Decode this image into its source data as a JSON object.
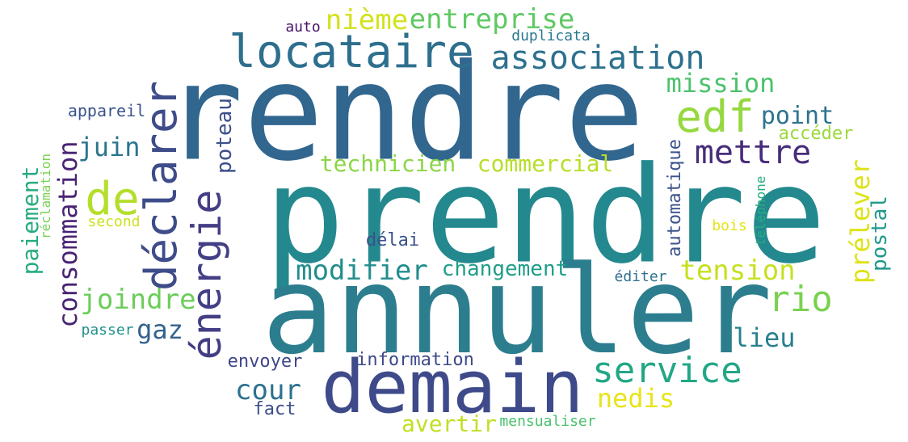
{
  "colors": {
    "background": "#ffffff",
    "palette": [
      "#440154",
      "#3b528b",
      "#2c718e",
      "#21918c",
      "#28ae80",
      "#5ec962",
      "#addc30",
      "#dde318"
    ]
  },
  "words": [
    {
      "id": "rendre",
      "text": "rendre",
      "color": "#31668e"
    },
    {
      "id": "prendre",
      "text": "prendre",
      "color": "#23898e"
    },
    {
      "id": "annuler",
      "text": "annuler",
      "color": "#2c7e8e"
    },
    {
      "id": "demain",
      "text": "demain",
      "color": "#3e4a89"
    },
    {
      "id": "locataire",
      "text": "locataire",
      "color": "#2e6f8e"
    },
    {
      "id": "declarer",
      "text": "déclarer",
      "color": "#3e4c8a"
    },
    {
      "id": "energie",
      "text": "énergie",
      "color": "#433e85"
    },
    {
      "id": "association",
      "text": "association",
      "color": "#2d708e"
    },
    {
      "id": "edf",
      "text": "edf",
      "color": "#95d840"
    },
    {
      "id": "mettre",
      "text": "mettre",
      "color": "#472c7a"
    },
    {
      "id": "de",
      "text": "de",
      "color": "#b5de2b"
    },
    {
      "id": "service",
      "text": "service",
      "color": "#22a785"
    },
    {
      "id": "entreprise",
      "text": "entreprise",
      "color": "#5ec962"
    },
    {
      "id": "niemeetc",
      "text": "nième",
      "color": "#d2e21b"
    },
    {
      "id": "mission",
      "text": "mission",
      "color": "#4cc26c"
    },
    {
      "id": "point",
      "text": "point",
      "color": "#2c738e"
    },
    {
      "id": "acceder",
      "text": "accéder",
      "color": "#9bd93c"
    },
    {
      "id": "juin",
      "text": "juin",
      "color": "#2b748e"
    },
    {
      "id": "technicien",
      "text": "technicien",
      "color": "#8bd646"
    },
    {
      "id": "commercial",
      "text": "commercial",
      "color": "#b8de29"
    },
    {
      "id": "poteau",
      "text": "poteau",
      "color": "#3c4f8a"
    },
    {
      "id": "consommation",
      "text": "consommation",
      "color": "#482374"
    },
    {
      "id": "paiement",
      "text": "paiement",
      "color": "#25ab82"
    },
    {
      "id": "reclamation",
      "text": "réclamation",
      "color": "#7ad151"
    },
    {
      "id": "second",
      "text": "second",
      "color": "#cde11d"
    },
    {
      "id": "appareil",
      "text": "appareil",
      "color": "#3a548c"
    },
    {
      "id": "auto",
      "text": "auto",
      "color": "#471164"
    },
    {
      "id": "duplicata",
      "text": "duplicata",
      "color": "#2a788e"
    },
    {
      "id": "modifier",
      "text": "modifier",
      "color": "#228d8d"
    },
    {
      "id": "changement",
      "text": "changement",
      "color": "#1f9e89"
    },
    {
      "id": "tension",
      "text": "tension",
      "color": "#c8e020"
    },
    {
      "id": "prelever",
      "text": "prélever",
      "color": "#dde318"
    },
    {
      "id": "postal",
      "text": "postal",
      "color": "#1f998a"
    },
    {
      "id": "automatique",
      "text": "automatique",
      "color": "#3b528b"
    },
    {
      "id": "telephone",
      "text": "téléphone",
      "color": "#27ad81"
    },
    {
      "id": "bois",
      "text": "bois",
      "color": "#e5e419"
    },
    {
      "id": "rio",
      "text": "rio",
      "color": "#7ad151"
    },
    {
      "id": "delai",
      "text": "délai",
      "color": "#3b518b"
    },
    {
      "id": "editer",
      "text": "éditer",
      "color": "#2d708e"
    },
    {
      "id": "joindre",
      "text": "joindre",
      "color": "#6ccd5a"
    },
    {
      "id": "gaz",
      "text": "gaz",
      "color": "#33628d"
    },
    {
      "id": "passer",
      "text": "passer",
      "color": "#21918c"
    },
    {
      "id": "lieu",
      "text": "lieu",
      "color": "#27808e"
    },
    {
      "id": "cour",
      "text": "cour",
      "color": "#2d718e"
    },
    {
      "id": "envoyer",
      "text": "envoyer",
      "color": "#3f4788"
    },
    {
      "id": "information",
      "text": "information",
      "color": "#3e4989"
    },
    {
      "id": "fact",
      "text": "fact",
      "color": "#3d4e8a"
    },
    {
      "id": "nedis",
      "text": "nedis",
      "color": "#e7e419"
    },
    {
      "id": "avertir",
      "text": "avertir",
      "color": "#c2df23"
    },
    {
      "id": "mensualiser",
      "text": "mensualiser",
      "color": "#4ac16d"
    }
  ]
}
